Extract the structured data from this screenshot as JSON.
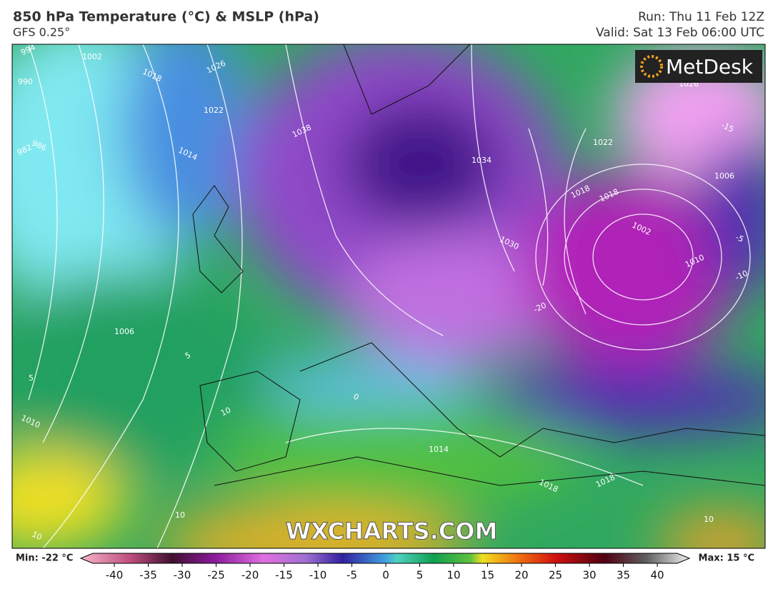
{
  "header": {
    "title": "850 hPa Temperature (°C) & MSLP (hPa)",
    "model": "GFS 0.25°",
    "run": "Run: Thu 11 Feb 12Z",
    "valid": "Valid: Sat 13 Feb 06:00 UTC"
  },
  "map": {
    "logo": "MetDesk",
    "watermark": "WXCHARTS.COM",
    "labels": [
      "994",
      "1002",
      "1018",
      "1026",
      "990",
      "986",
      "982",
      "1022",
      "1014",
      "1038",
      "1034",
      "1030",
      "1018",
      "1022",
      "1002",
      "1010",
      "1006",
      "-15",
      "-20",
      "1006",
      "1010",
      "5",
      "5",
      "0",
      "10",
      "1014",
      "1018",
      "1018",
      "10",
      "10",
      "1018",
      "10",
      "-5",
      "-10",
      "1026"
    ]
  },
  "legend": {
    "min": "Min: -22 °C",
    "max": "Max: 15 °C",
    "ticks": [
      -40,
      -35,
      -30,
      -25,
      -20,
      -15,
      -10,
      -5,
      0,
      5,
      10,
      15,
      20,
      25,
      30,
      35,
      40
    ]
  }
}
